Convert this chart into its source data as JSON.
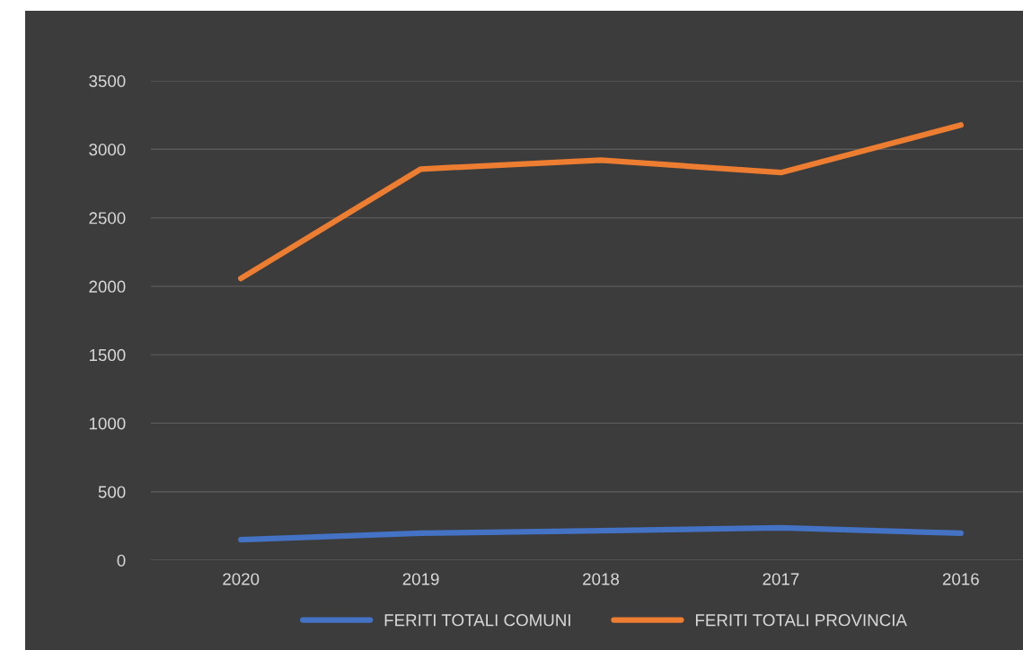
{
  "chart_data": {
    "type": "line",
    "categories": [
      "2020",
      "2019",
      "2018",
      "2017",
      "2016"
    ],
    "series": [
      {
        "name": "FERITI TOTALI COMUNI",
        "color": "#4472c4",
        "values": [
          150,
          197,
          216,
          236,
          197
        ]
      },
      {
        "name": "FERITI TOTALI PROVINCIA",
        "color": "#ed7d31",
        "values": [
          2057,
          2856,
          2921,
          2830,
          3177
        ]
      }
    ],
    "ylim": [
      0,
      3500
    ],
    "yticks": [
      0,
      500,
      1000,
      1500,
      2000,
      2500,
      3000,
      3500
    ],
    "grid": "y",
    "legend": "bottom",
    "marker": "none",
    "line_style": "solid"
  }
}
